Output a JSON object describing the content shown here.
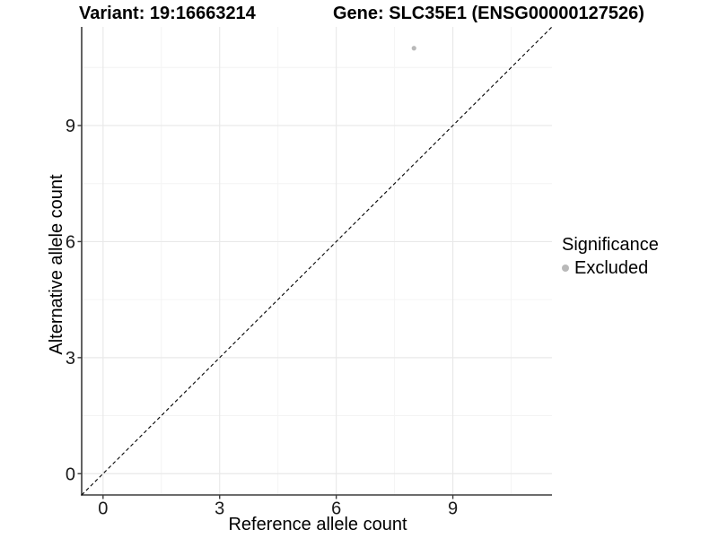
{
  "figure": {
    "title_left": "Variant: 19:16663214",
    "title_right": "Gene: SLC35E1 (ENSG00000127526)"
  },
  "legend": {
    "title": "Significance",
    "entries": [
      {
        "label": "Excluded",
        "color": "#b9b9b9"
      }
    ]
  },
  "chart_data": {
    "type": "scatter",
    "title": "Variant: 19:16663214   |   Gene: SLC35E1 (ENSG00000127526)",
    "xlabel": "Reference allele count",
    "ylabel": "Alternative allele count",
    "xlim": [
      -0.55,
      11.55
    ],
    "ylim": [
      -0.55,
      11.55
    ],
    "x_major_ticks": [
      0,
      3,
      6,
      9
    ],
    "y_major_ticks": [
      0,
      3,
      6,
      9
    ],
    "x_minor_ticks": [
      1.5,
      4.5,
      7.5,
      10.5
    ],
    "y_minor_ticks": [
      1.5,
      4.5,
      7.5,
      10.5
    ],
    "grid": "major+minor",
    "legend_position": "right",
    "series": [
      {
        "name": "Excluded",
        "points": [
          {
            "x": 8,
            "y": 11
          }
        ],
        "color": "#b9b9b9",
        "point_radius": 2.6
      }
    ],
    "reference_line": {
      "slope": 1,
      "intercept": 0,
      "style": "dashed",
      "color": "#000000"
    },
    "style": {
      "axis_color": "#3c3c3c",
      "tick_color": "#3c3c3c",
      "tick_label_color": "#1a1a1a",
      "grid_major_color": "#e9e9e9",
      "grid_minor_color": "#f4f4f4",
      "background": "#ffffff"
    }
  }
}
